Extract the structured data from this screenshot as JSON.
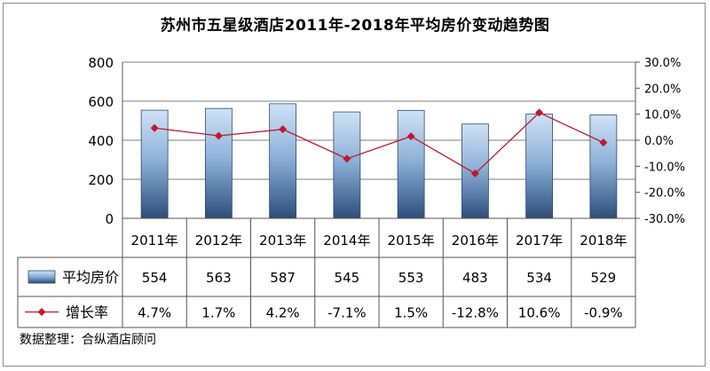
{
  "title": "苏州市五星级酒店2011年-2018年平均房价变动趋势图",
  "source": "数据整理：合纵酒店顾问",
  "colors": {
    "bar_top": "#cfe2f6",
    "bar_bottom": "#2b4f7a",
    "line": "#c0182b"
  },
  "chart_data": {
    "type": "bar",
    "categories": [
      "2011年",
      "2012年",
      "2013年",
      "2014年",
      "2015年",
      "2016年",
      "2017年",
      "2018年"
    ],
    "series": [
      {
        "name": "平均房价",
        "type": "bar",
        "axis": "left",
        "values": [
          554,
          563,
          587,
          545,
          553,
          483,
          534,
          529
        ]
      },
      {
        "name": "增长率",
        "type": "line",
        "axis": "right",
        "values": [
          4.7,
          1.7,
          4.2,
          -7.1,
          1.5,
          -12.8,
          10.6,
          -0.9
        ]
      }
    ],
    "table_labels": [
      "554",
      "563",
      "587",
      "545",
      "553",
      "483",
      "534",
      "529"
    ],
    "rate_labels": [
      "4.7%",
      "1.7%",
      "4.2%",
      "-7.1%",
      "1.5%",
      "-12.8%",
      "10.6%",
      "-0.9%"
    ],
    "y_left": {
      "min": 0,
      "max": 800,
      "ticks": [
        "0",
        "200",
        "400",
        "600",
        "800"
      ]
    },
    "y_right": {
      "min": -30,
      "max": 30,
      "ticks": [
        "-30.0%",
        "-20.0%",
        "-10.0%",
        "0.0%",
        "10.0%",
        "20.0%",
        "30.0%"
      ]
    },
    "grid": true,
    "legend": "data-table"
  }
}
